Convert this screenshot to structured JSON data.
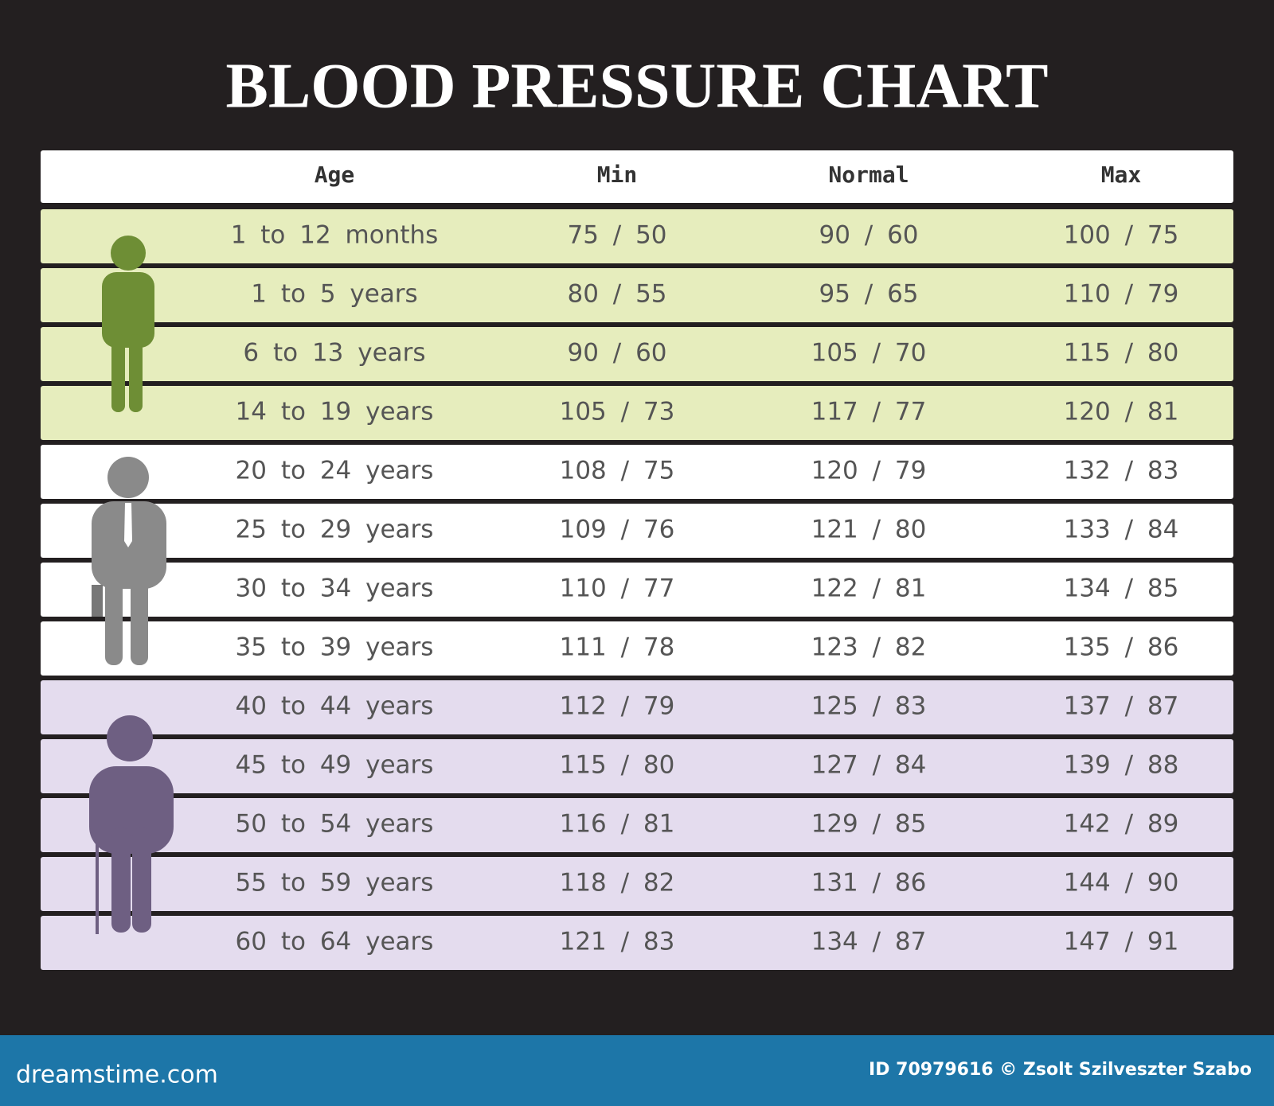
{
  "title": "BLOOD PRESSURE CHART",
  "table": {
    "header": [
      "Age",
      "Min",
      "Normal",
      "Max"
    ],
    "rows": [
      [
        "1 to 12 months",
        "75 / 50",
        "90 / 60",
        "100 / 75"
      ],
      [
        "1 to 5 years",
        "80 / 55",
        "95 / 65",
        "110 / 79"
      ],
      [
        "6 to 13 years",
        "90 / 60",
        "105 / 70",
        "115 / 80"
      ],
      [
        "14 to 19 years",
        "105 / 73",
        "117 / 77",
        "120 / 81"
      ],
      [
        "20 to 24 years",
        "108 / 75",
        "120 / 79",
        "132 / 83"
      ],
      [
        "25 to 29 years",
        "109 / 76",
        "121 / 80",
        "133 / 84"
      ],
      [
        "30 to 34 years",
        "110 / 77",
        "122 / 81",
        "134 / 85"
      ],
      [
        "35 to 39 years",
        "111 / 78",
        "123 / 82",
        "135 / 86"
      ],
      [
        "40 to 44 years",
        "112 / 79",
        "125 / 83",
        "137 / 87"
      ],
      [
        "45 to 49 years",
        "115 / 80",
        "127 / 84",
        "139 / 88"
      ],
      [
        "50 to 54 years",
        "116 / 81",
        "129 / 85",
        "142 / 89"
      ],
      [
        "55 to 59 years",
        "118 / 82",
        "131 / 86",
        "144 / 90"
      ],
      [
        "60 to 64 years",
        "121 / 83",
        "134 / 87",
        "147 / 91"
      ]
    ]
  },
  "footer": {
    "logo": "dreamstime.com",
    "credit": "ID 70979616 © Zsolt Szilveszter Szabo"
  }
}
